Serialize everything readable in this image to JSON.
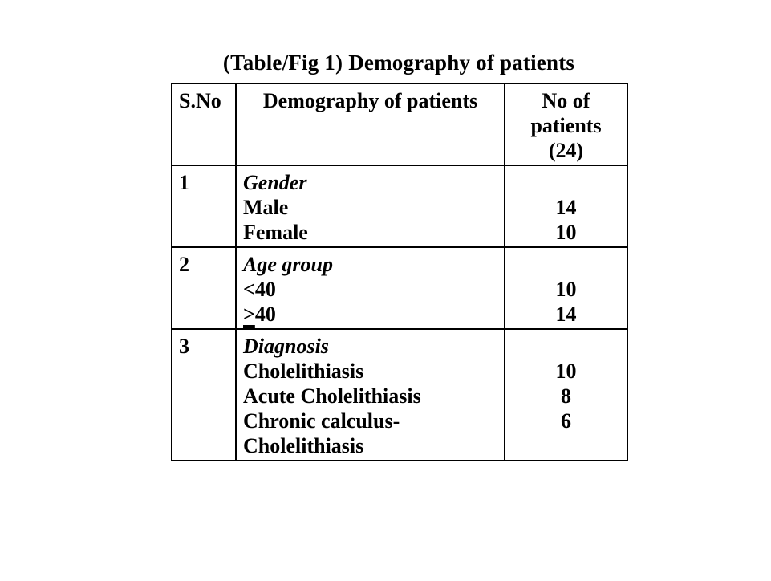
{
  "page": {
    "title": "(Table/Fig 1) Demography of patients"
  },
  "table": {
    "headers": {
      "sno": "S.No",
      "demography": "Demography of patients",
      "patients_lines": [
        "No of",
        "patients",
        "(24)"
      ]
    },
    "rows": [
      {
        "sno": "1",
        "category": "Gender",
        "items": [
          {
            "label": "Male",
            "value": "14"
          },
          {
            "label": "Female",
            "value": "10"
          }
        ]
      },
      {
        "sno": "2",
        "category": "Age group",
        "items": [
          {
            "label": "<40",
            "value": "10"
          },
          {
            "label_prefix": ">",
            "label": "40",
            "prefix_underlined": true,
            "value": "14"
          }
        ]
      },
      {
        "sno": "3",
        "category": "Diagnosis",
        "items": [
          {
            "label": "Cholelithiasis",
            "value": "10"
          },
          {
            "label": "Acute Cholelithiasis",
            "value": "8"
          },
          {
            "label": "Chronic calculus-",
            "label2": "Cholelithiasis",
            "value": "6"
          }
        ]
      }
    ]
  },
  "chart_data": {
    "type": "table",
    "title": "(Table/Fig 1) Demography of patients",
    "columns": [
      "S.No",
      "Demography of patients",
      "No of patients (24)"
    ],
    "rows": [
      [
        "1",
        "Gender",
        ""
      ],
      [
        "",
        "Male",
        "14"
      ],
      [
        "",
        "Female",
        "10"
      ],
      [
        "2",
        "Age group",
        ""
      ],
      [
        "",
        "<40",
        "10"
      ],
      [
        "",
        ">=40",
        "14"
      ],
      [
        "3",
        "Diagnosis",
        ""
      ],
      [
        "",
        "Cholelithiasis",
        "10"
      ],
      [
        "",
        "Acute Cholelithiasis",
        "8"
      ],
      [
        "",
        "Chronic calculus-Cholelithiasis",
        "6"
      ]
    ]
  }
}
